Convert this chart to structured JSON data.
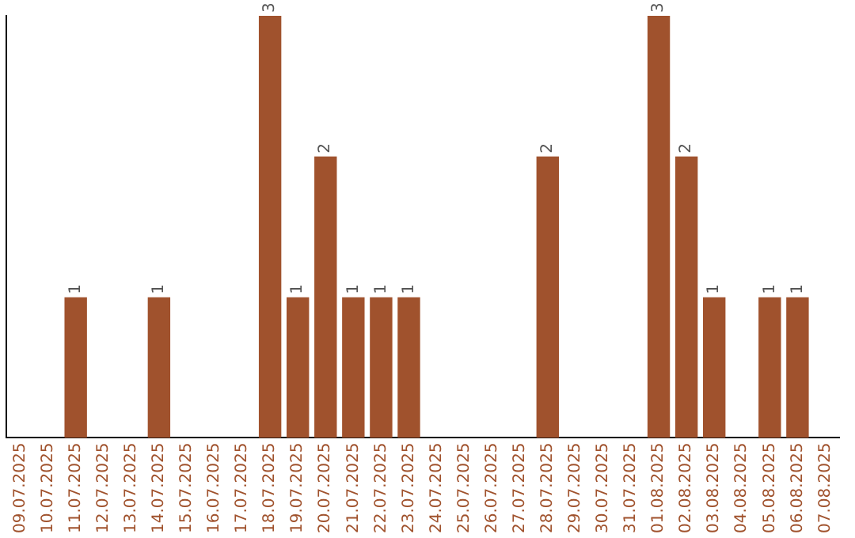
{
  "chart_data": {
    "type": "bar",
    "categories": [
      "09.07.2025",
      "10.07.2025",
      "11.07.2025",
      "12.07.2025",
      "13.07.2025",
      "14.07.2025",
      "15.07.2025",
      "16.07.2025",
      "17.07.2025",
      "18.07.2025",
      "19.07.2025",
      "20.07.2025",
      "21.07.2025",
      "22.07.2025",
      "23.07.2025",
      "24.07.2025",
      "25.07.2025",
      "26.07.2025",
      "27.07.2025",
      "28.07.2025",
      "29.07.2025",
      "30.07.2025",
      "31.07.2025",
      "01.08.2025",
      "02.08.2025",
      "03.08.2025",
      "04.08.2025",
      "05.08.2025",
      "06.08.2025",
      "07.08.2025"
    ],
    "values": [
      0,
      0,
      1,
      0,
      0,
      1,
      0,
      0,
      0,
      3,
      1,
      2,
      1,
      1,
      1,
      0,
      0,
      0,
      0,
      2,
      0,
      0,
      0,
      3,
      2,
      1,
      0,
      1,
      1,
      0
    ],
    "value_labels": [
      null,
      null,
      "1",
      null,
      null,
      "1",
      null,
      null,
      null,
      "3",
      "1",
      "2",
      "1",
      "1",
      "1",
      null,
      null,
      null,
      null,
      "2",
      null,
      null,
      null,
      "3",
      "2",
      "1",
      null,
      "1",
      "1",
      null
    ],
    "color": "#a0522d",
    "tick_labels": "x",
    "grid": false,
    "legend": false
  }
}
